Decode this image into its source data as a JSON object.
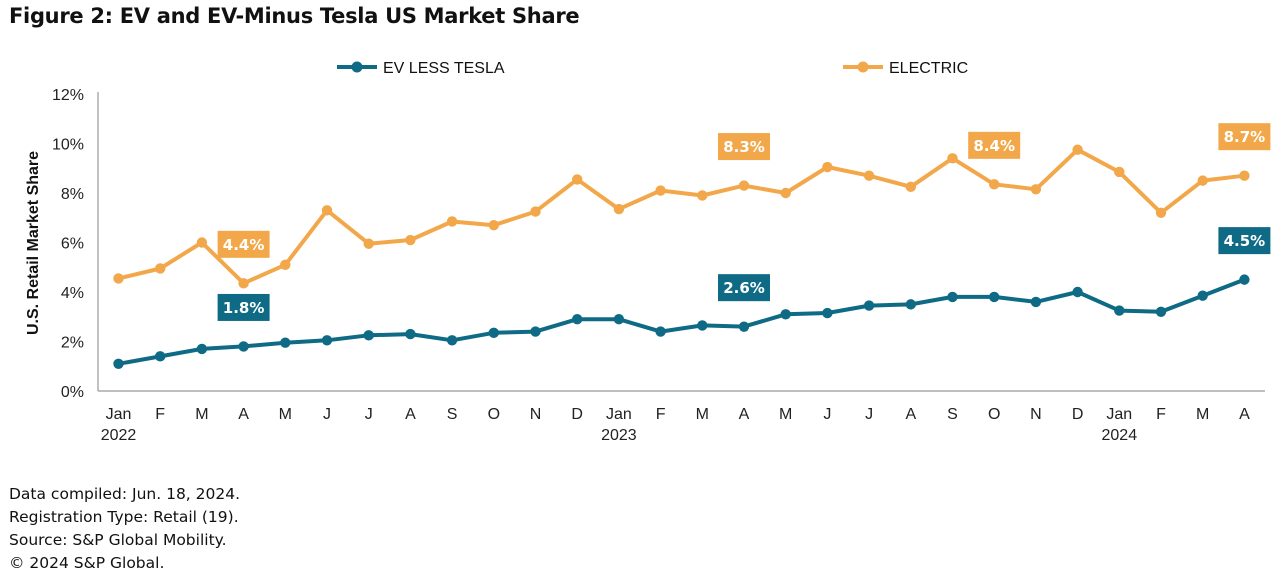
{
  "figure": {
    "title": "Figure 2: EV and EV-Minus Tesla US Market Share"
  },
  "notes": [
    "Data compiled: Jun. 18, 2024.",
    "Registration Type: Retail (19).",
    "Source: S&P Global Mobility.",
    "© 2024 S&P Global."
  ],
  "colors": {
    "ev_less_tesla": "#0f6b85",
    "electric": "#f2a84a",
    "axis": "#999999"
  },
  "chart_data": {
    "type": "line",
    "title": "",
    "xlabel": "",
    "ylabel": "U.S. Retail Market Share",
    "ylim": [
      0,
      12
    ],
    "yticks": [
      "0%",
      "2%",
      "4%",
      "6%",
      "8%",
      "10%",
      "12%"
    ],
    "ytick_values": [
      0,
      2,
      4,
      6,
      8,
      10,
      12
    ],
    "categories": [
      "Jan",
      "F",
      "M",
      "A",
      "M",
      "J",
      "J",
      "A",
      "S",
      "O",
      "N",
      "D",
      "Jan",
      "F",
      "M",
      "A",
      "M",
      "J",
      "J",
      "A",
      "S",
      "O",
      "N",
      "D",
      "Jan",
      "F",
      "M",
      "A"
    ],
    "year_labels": [
      {
        "index": 0,
        "label": "2022"
      },
      {
        "index": 12,
        "label": "2023"
      },
      {
        "index": 24,
        "label": "2024"
      }
    ],
    "legend": {
      "placement": "top-center"
    },
    "series": [
      {
        "name": "EV LESS TESLA",
        "key": "ev_less_tesla",
        "values": [
          1.1,
          1.4,
          1.7,
          1.8,
          1.95,
          2.05,
          2.25,
          2.3,
          2.05,
          2.35,
          2.4,
          2.9,
          2.9,
          2.4,
          2.65,
          2.6,
          3.1,
          3.15,
          3.45,
          3.5,
          3.8,
          3.8,
          3.6,
          4.0,
          3.25,
          3.2,
          3.85,
          4.5
        ],
        "annotations": [
          {
            "index": 3,
            "text": "1.8%",
            "offset": "above"
          },
          {
            "index": 15,
            "text": "2.6%",
            "offset": "above"
          },
          {
            "index": 27,
            "text": "4.5%",
            "offset": "above"
          }
        ]
      },
      {
        "name": "ELECTRIC",
        "key": "electric",
        "values": [
          4.55,
          4.95,
          6.0,
          4.35,
          5.1,
          7.3,
          5.95,
          6.1,
          6.85,
          6.7,
          7.25,
          8.55,
          7.35,
          8.1,
          7.9,
          8.3,
          8.0,
          9.05,
          8.7,
          8.25,
          9.4,
          8.35,
          8.15,
          9.75,
          8.85,
          7.2,
          8.5,
          8.7
        ],
        "annotations": [
          {
            "index": 3,
            "text": "4.4%",
            "offset": "above"
          },
          {
            "index": 15,
            "text": "8.3%",
            "offset": "above"
          },
          {
            "index": 21,
            "text": "8.4%",
            "offset": "above"
          },
          {
            "index": 27,
            "text": "8.7%",
            "offset": "above"
          }
        ]
      }
    ]
  }
}
